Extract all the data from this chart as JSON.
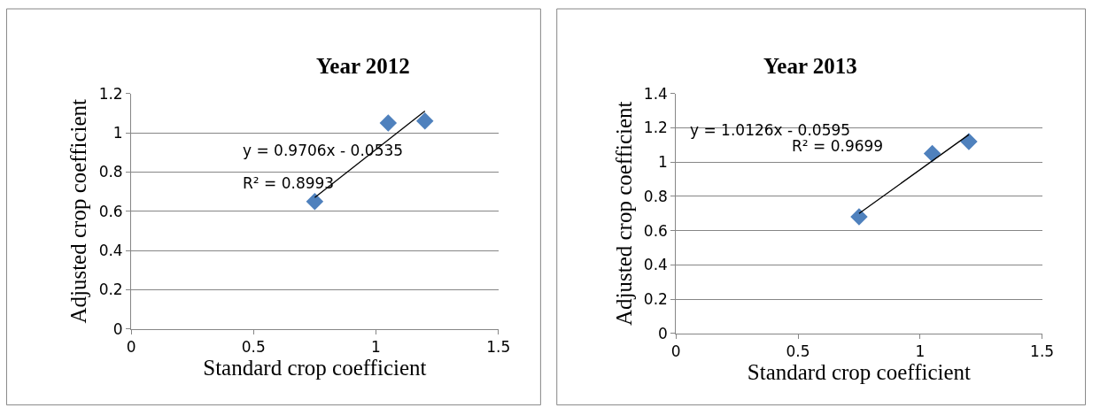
{
  "chart_data": [
    {
      "type": "scatter",
      "title": "Year 2012",
      "xlabel": "Standard crop coefficient",
      "ylabel": "Adjusted crop coefficient",
      "xlim": [
        0,
        1.5
      ],
      "xticks": [
        0,
        0.5,
        1,
        1.5
      ],
      "ylim": [
        0,
        1.2
      ],
      "yticks": [
        0,
        0.2,
        0.4,
        0.6,
        0.8,
        1,
        1.2
      ],
      "grid": "y",
      "marker": "diamond",
      "series": [
        {
          "color": "#4f81bd",
          "x": [
            0.75,
            1.05,
            1.2
          ],
          "values": [
            0.65,
            1.05,
            1.06
          ]
        },
        {
          "type": "line",
          "color": "#000000",
          "marker": "none",
          "x": [
            0.75,
            1.2
          ],
          "values": [
            0.67,
            1.11
          ]
        }
      ],
      "annotations": [
        "y = 0.9706x - 0.0535",
        "R² = 0.8993"
      ]
    },
    {
      "type": "scatter",
      "title": "Year 2013",
      "xlabel": "Standard crop coefficient",
      "ylabel": "Adjusted crop coefficient",
      "xlim": [
        0,
        1.5
      ],
      "xticks": [
        0,
        0.5,
        1,
        1.5
      ],
      "ylim": [
        0,
        1.4
      ],
      "yticks": [
        0,
        0.2,
        0.4,
        0.6,
        0.8,
        1,
        1.2,
        1.4
      ],
      "grid": "y",
      "marker": "diamond",
      "series": [
        {
          "color": "#4f81bd",
          "x": [
            0.75,
            1.05,
            1.2
          ],
          "values": [
            0.68,
            1.05,
            1.12
          ]
        },
        {
          "type": "line",
          "color": "#000000",
          "marker": "none",
          "x": [
            0.75,
            1.2
          ],
          "values": [
            0.7,
            1.16
          ]
        }
      ],
      "annotations": [
        "y = 1.0126x - 0.0595",
        "R² = 0.9699"
      ]
    }
  ]
}
